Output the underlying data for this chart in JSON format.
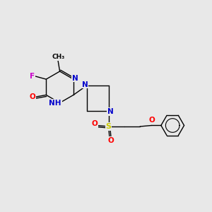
{
  "bg_color": "#e8e8e8",
  "bond_color": "#000000",
  "atom_colors": {
    "N": "#0000cc",
    "O": "#ff0000",
    "F": "#cc00cc",
    "S": "#cccc00",
    "C": "#000000"
  },
  "lw": 1.0,
  "font_size": 7.5
}
